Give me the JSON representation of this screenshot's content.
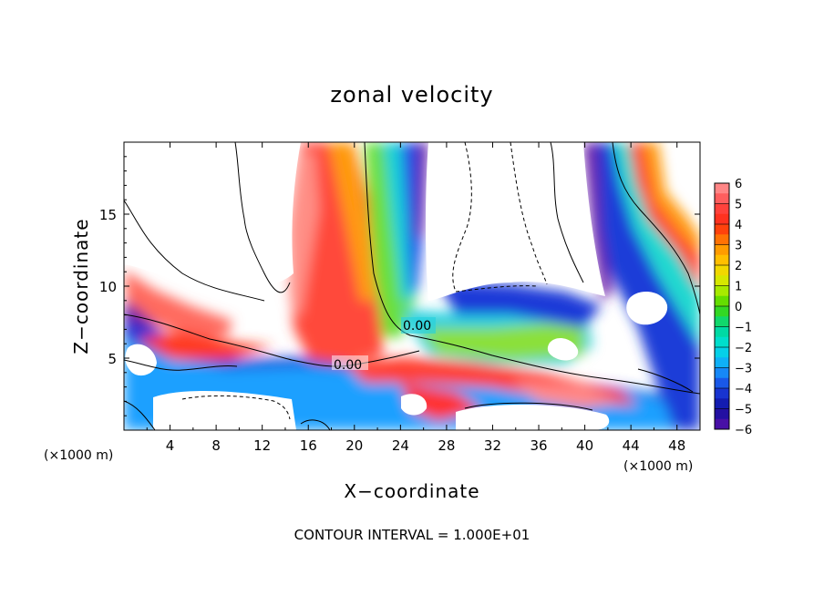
{
  "chart_data": {
    "type": "heatmap",
    "title": "zonal velocity",
    "xlabel": "X−coordinate",
    "ylabel": "Z−coordinate",
    "x_unit_left": "(×1000 m)",
    "x_unit_right": "(×1000 m)",
    "xlim": [
      0,
      50
    ],
    "ylim": [
      0,
      20
    ],
    "x_ticks": [
      4,
      8,
      12,
      16,
      20,
      24,
      28,
      32,
      36,
      40,
      44,
      48
    ],
    "y_ticks": [
      5,
      10,
      15
    ],
    "colorbar": {
      "levels": [
        6,
        5,
        4,
        3,
        2,
        1,
        0,
        -1,
        -2,
        -3,
        -4,
        -5,
        -6
      ],
      "labels": [
        "6",
        "5",
        "4",
        "3",
        "2",
        "1",
        "0",
        "−1",
        "−2",
        "−3",
        "−4",
        "−5",
        "−6"
      ]
    },
    "contour_labels": [
      "0.00",
      "0.00"
    ],
    "note": "CONTOUR INTERVAL = 1.000E+01"
  }
}
